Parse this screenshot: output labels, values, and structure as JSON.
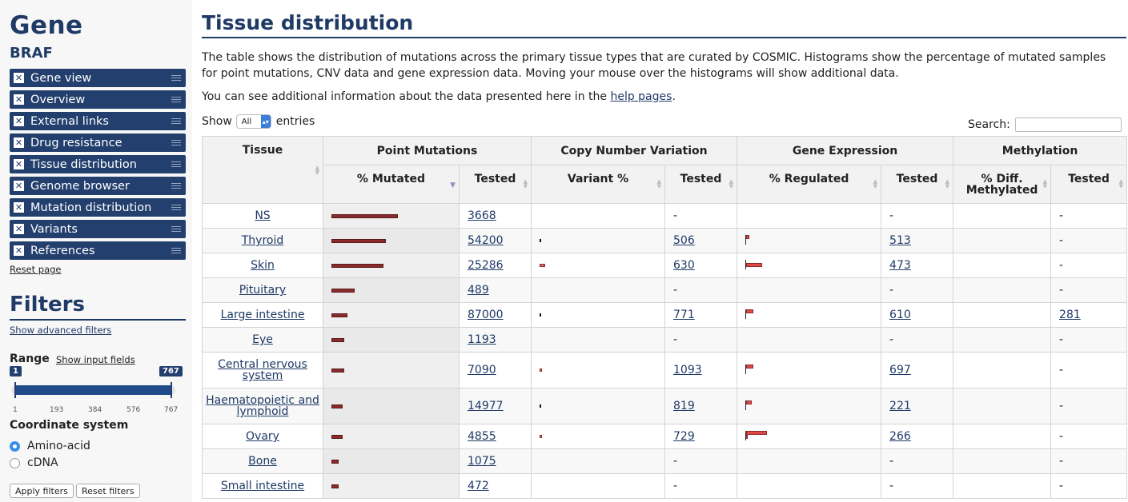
{
  "sidebar": {
    "gene_heading": "Gene",
    "gene_name": "BRAF",
    "nav_items": [
      "Gene view",
      "Overview",
      "External links",
      "Drug resistance",
      "Tissue distribution",
      "Genome browser",
      "Mutation distribution",
      "Variants",
      "References"
    ],
    "reset_page": "Reset page",
    "filters_heading": "Filters",
    "show_advanced": "Show advanced filters",
    "range_label": "Range",
    "show_input_fields": "Show input fields",
    "range_min_badge": "1",
    "range_max_badge": "767",
    "range_ticks": [
      "1",
      "193",
      "384",
      "576",
      "767"
    ],
    "coordinate_label": "Coordinate system",
    "radio_options": [
      "Amino-acid",
      "cDNA"
    ],
    "selected_radio": "Amino-acid",
    "apply_button": "Apply filters",
    "reset_button": "Reset filters",
    "nav_icon": "close-icon",
    "handle_icon": "drag-handle-icon",
    "accent_color": "#233f6e"
  },
  "main": {
    "title": "Tissue distribution",
    "intro": "The table shows the distribution of mutations across the primary tissue types that are curated by COSMIC. Histograms show the percentage of mutated samples for point mutations, CNV data and gene expression data. Moving your mouse over the histograms will show additional data.",
    "help_prefix": "You can see additional information about the data presented here in the ",
    "help_link": "help pages",
    "help_suffix": ".",
    "show_label": "Show",
    "show_value": "All",
    "entries_label": "entries",
    "search_label": "Search:",
    "search_value": ""
  },
  "table": {
    "group_headers": [
      "Tissue",
      "Point Mutations",
      "Copy Number Variation",
      "Gene Expression",
      "Methylation"
    ],
    "sub_headers": {
      "pm_pct": "% Mutated",
      "pm_tested": "Tested",
      "cnv_pct": "Variant %",
      "cnv_tested": "Tested",
      "ge_pct": "% Regulated",
      "ge_tested": "Tested",
      "me_pct_line1": "% Diff.",
      "me_pct_line2": "Methylated",
      "me_tested": "Tested"
    },
    "sorted_column": "% Mutated",
    "sort_direction": "descending",
    "rows": [
      {
        "tissue": "NS",
        "pm_mutated_pct": 37,
        "pm_tested": "3668",
        "cnv_variant_pct": null,
        "cnv_tested": "-",
        "ge_up_pct": null,
        "ge_down_pct": null,
        "ge_tested": "-",
        "me_tested": "-"
      },
      {
        "tissue": "Thyroid",
        "pm_mutated_pct": 30,
        "pm_tested": "54200",
        "cnv_variant_pct": 0.4,
        "cnv_tested": "506",
        "ge_up_pct": 2,
        "ge_down_pct": 0,
        "ge_tested": "513",
        "me_tested": "-"
      },
      {
        "tissue": "Skin",
        "pm_mutated_pct": 29,
        "pm_tested": "25286",
        "cnv_variant_pct": 3,
        "cnv_tested": "630",
        "ge_up_pct": 0,
        "ge_down_pct": 9,
        "ge_tested": "473",
        "me_tested": "-"
      },
      {
        "tissue": "Pituitary",
        "pm_mutated_pct": 13,
        "pm_tested": "489",
        "cnv_variant_pct": null,
        "cnv_tested": "-",
        "ge_up_pct": null,
        "ge_down_pct": null,
        "ge_tested": "-",
        "me_tested": "-"
      },
      {
        "tissue": "Large intestine",
        "pm_mutated_pct": 9,
        "pm_tested": "87000",
        "cnv_variant_pct": 1,
        "cnv_tested": "771",
        "ge_up_pct": 4,
        "ge_down_pct": 0,
        "ge_tested": "610",
        "me_tested": "281"
      },
      {
        "tissue": "Eye",
        "pm_mutated_pct": 7,
        "pm_tested": "1193",
        "cnv_variant_pct": null,
        "cnv_tested": "-",
        "ge_up_pct": null,
        "ge_down_pct": null,
        "ge_tested": "-",
        "me_tested": "-"
      },
      {
        "tissue": "Central nervous system",
        "pm_mutated_pct": 7,
        "pm_tested": "7090",
        "cnv_variant_pct": 1.5,
        "cnv_tested": "1093",
        "ge_up_pct": 4,
        "ge_down_pct": 0,
        "ge_tested": "697",
        "me_tested": "-"
      },
      {
        "tissue": "Haematopoietic and lymphoid",
        "pm_mutated_pct": 6,
        "pm_tested": "14977",
        "cnv_variant_pct": 0.4,
        "cnv_tested": "819",
        "ge_up_pct": 3,
        "ge_down_pct": 0,
        "ge_tested": "221",
        "me_tested": "-"
      },
      {
        "tissue": "Ovary",
        "pm_mutated_pct": 6,
        "pm_tested": "4855",
        "cnv_variant_pct": 1.5,
        "cnv_tested": "729",
        "ge_up_pct": 12,
        "ge_down_pct": 1,
        "ge_tested": "266",
        "me_tested": "-"
      },
      {
        "tissue": "Bone",
        "pm_mutated_pct": 4,
        "pm_tested": "1075",
        "cnv_variant_pct": null,
        "cnv_tested": "-",
        "ge_up_pct": null,
        "ge_down_pct": null,
        "ge_tested": "-",
        "me_tested": "-"
      },
      {
        "tissue": "Small intestine",
        "pm_mutated_pct": 4,
        "pm_tested": "472",
        "cnv_variant_pct": null,
        "cnv_tested": "-",
        "ge_up_pct": null,
        "ge_down_pct": null,
        "ge_tested": "-",
        "me_tested": "-"
      }
    ],
    "colors": {
      "pm_bar": "#8b2a2a",
      "cnv_bar": "#e06a6a",
      "ge_bar": "#e04848"
    }
  }
}
